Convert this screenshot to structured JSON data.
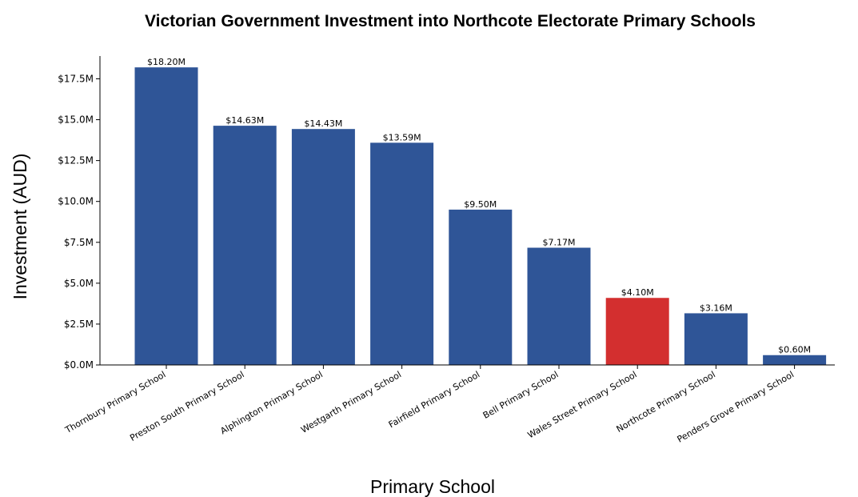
{
  "chart_data": {
    "type": "bar",
    "title": "Victorian Government Investment into Northcote Electorate Primary Schools",
    "xlabel": "Primary School",
    "ylabel": "Investment (AUD)",
    "ylim": [
      0,
      19
    ],
    "yticks": [
      {
        "value": 0,
        "label": "$0.0M"
      },
      {
        "value": 2.5,
        "label": "$2.5M"
      },
      {
        "value": 5.0,
        "label": "$5.0M"
      },
      {
        "value": 7.5,
        "label": "$7.5M"
      },
      {
        "value": 10.0,
        "label": "$10.0M"
      },
      {
        "value": 12.5,
        "label": "$12.5M"
      },
      {
        "value": 15.0,
        "label": "$15.0M"
      },
      {
        "value": 17.5,
        "label": "$17.5M"
      }
    ],
    "categories": [
      "Thornbury Primary School",
      "Preston South Primary School",
      "Alphington Primary School",
      "Westgarth Primary School",
      "Fairfield Primary School",
      "Bell Primary School",
      "Wales Street Primary School",
      "Northcote Primary School",
      "Penders Grove Primary School"
    ],
    "values": [
      18.2,
      14.63,
      14.43,
      13.59,
      9.5,
      7.17,
      4.1,
      3.16,
      0.6
    ],
    "value_labels": [
      "$18.20M",
      "$14.63M",
      "$14.43M",
      "$13.59M",
      "$9.50M",
      "$7.17M",
      "$4.10M",
      "$3.16M",
      "$0.60M"
    ],
    "colors": [
      "#2f5597",
      "#2f5597",
      "#2f5597",
      "#2f5597",
      "#2f5597",
      "#2f5597",
      "#d32f2f",
      "#2f5597",
      "#2f5597"
    ],
    "grid": false,
    "legend": "none"
  }
}
